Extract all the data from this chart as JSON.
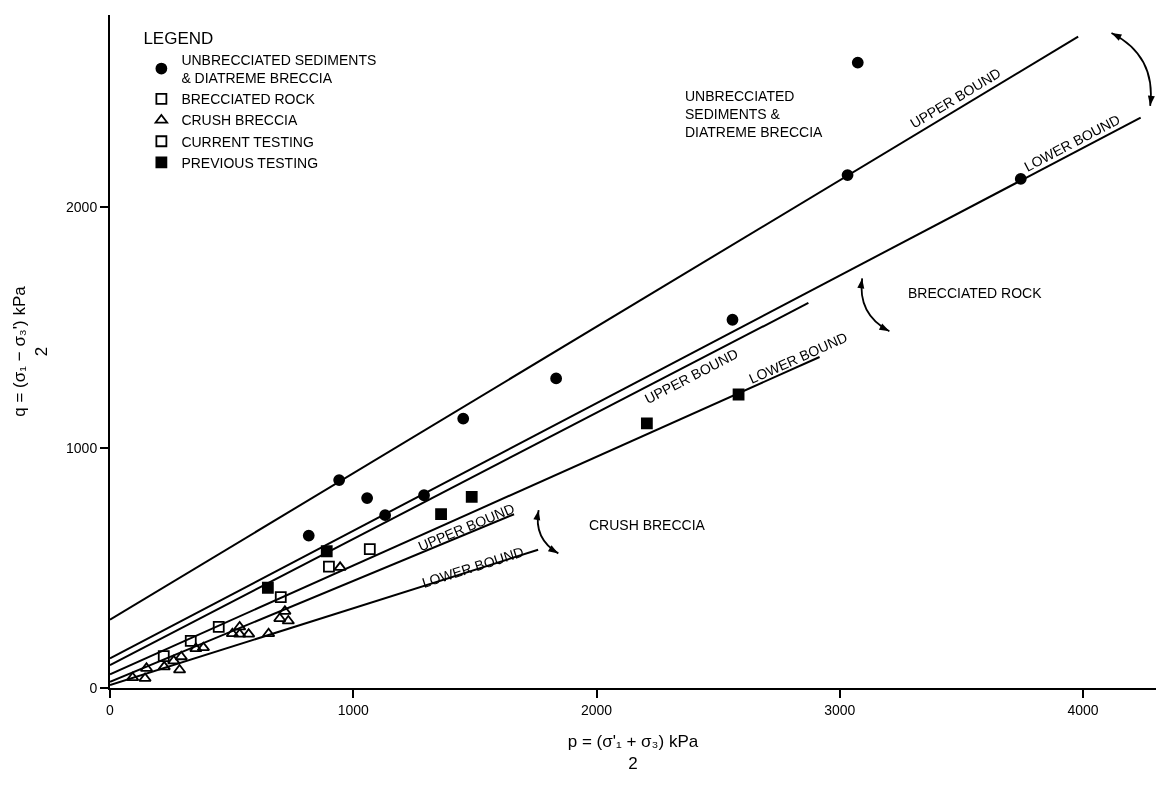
{
  "chart_data": {
    "type": "scatter",
    "xlabel": "p = (σ'₁ + σ₃) kPa\n2",
    "ylabel": "q = (σ₁ − σ₃') kPa\n2",
    "legend_title": "LEGEND",
    "legend": "top left",
    "grid": false,
    "xlim": [
      0,
      4300
    ],
    "xticks": [
      0,
      1000,
      2000,
      3000,
      4000
    ],
    "ylim": [
      0,
      2800
    ],
    "yticks": [
      0,
      1000,
      2000
    ],
    "series": [
      {
        "name": "UNBRECCIATED SEDIMENTS\n& DIATREME BRECCIA",
        "marker": "circle",
        "color": "#000000",
        "x": [
          817,
          942,
          1057,
          1131,
          1291,
          1452,
          1834,
          2559,
          3032,
          3074,
          3744
        ],
        "values": [
          634,
          865,
          790,
          719,
          802,
          1121,
          1288,
          1532,
          2134,
          2602,
          2118
        ]
      },
      {
        "name": "BRECCIATED ROCK",
        "marker": "square",
        "color": "#000000",
        "x": [
          null
        ],
        "values": [
          null
        ]
      },
      {
        "name": "CRUSH BRECCIA",
        "marker": "triangle",
        "color": "#000000",
        "x": [
          946,
          719,
          698,
          733,
          652,
          570,
          533,
          503,
          533,
          384,
          353,
          293,
          262,
          286,
          223,
          150,
          144,
          93
        ],
        "values": [
          502,
          319,
          289,
          279,
          226,
          224,
          254,
          226,
          224,
          168,
          164,
          130,
          113,
          75,
          88,
          82,
          40,
          43
        ]
      },
      {
        "name": "CURRENT TESTING",
        "marker": "square",
        "color": "#000000",
        "x": [
          1068,
          900,
          702,
          447,
          332,
          221
        ],
        "values": [
          578,
          505,
          378,
          254,
          196,
          133
        ]
      },
      {
        "name": "PREVIOUS TESTING",
        "marker": "square",
        "color": "#000000",
        "x": [
          891,
          649,
          1361,
          1487,
          2207,
          2584
        ],
        "values": [
          569,
          417,
          723,
          795,
          1101,
          1221
        ]
      },
      {
        "type": "line",
        "color": "#000000",
        "line_style": "solid",
        "x": [
          0,
          3980
        ],
        "values": [
          284,
          2710
        ]
      },
      {
        "type": "line",
        "color": "#000000",
        "line_style": "solid",
        "x": [
          0,
          4237
        ],
        "values": [
          123,
          2373
        ]
      },
      {
        "type": "line",
        "color": "#000000",
        "line_style": "solid",
        "x": [
          0,
          2871
        ],
        "values": [
          95,
          1602
        ]
      },
      {
        "type": "line",
        "color": "#000000",
        "line_style": "solid",
        "x": [
          0,
          2917
        ],
        "values": [
          57,
          1377
        ]
      },
      {
        "type": "line",
        "color": "#000000",
        "line_style": "solid",
        "x": [
          0,
          1661
        ],
        "values": [
          26,
          723
        ]
      },
      {
        "type": "line",
        "color": "#000000",
        "line_style": "solid",
        "x": [
          0,
          1760
        ],
        "values": [
          12,
          575
        ]
      }
    ],
    "annotations": [
      "UNBRECCIATED\nSEDIMENTS &\nDIATREME BRECCIA",
      "UPPER BOUND",
      "LOWER BOUND",
      "BRECCIATED ROCK",
      "UPPER BOUND",
      "LOWER BOUND",
      "CRUSH BRECCIA",
      "UPPER BOUND",
      "LOWER BOUND"
    ]
  }
}
